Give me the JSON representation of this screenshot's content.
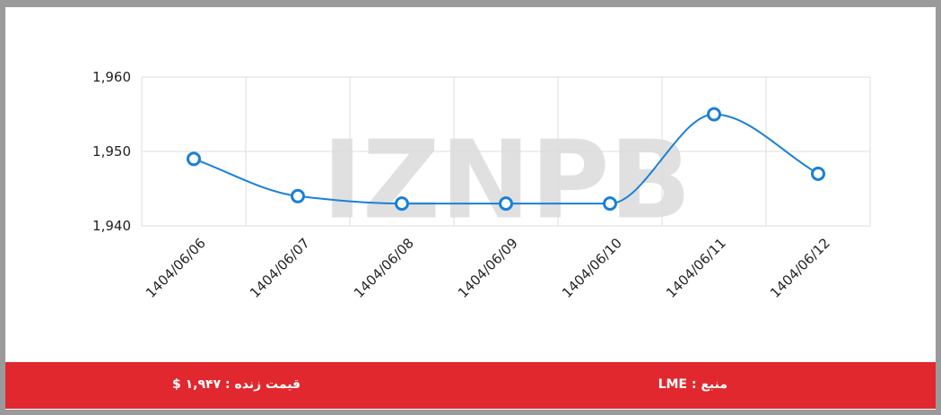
{
  "chart_data": {
    "type": "line",
    "watermark": "IZNPB",
    "categories": [
      "1404/06/06",
      "1404/06/07",
      "1404/06/08",
      "1404/06/09",
      "1404/06/10",
      "1404/06/11",
      "1404/06/12"
    ],
    "values": [
      1949,
      1944,
      1943,
      1943,
      1943,
      1955,
      1947
    ],
    "color": "#1a80d6",
    "ylim": [
      1940,
      1960
    ],
    "yticks": [
      {
        "value": 1940,
        "label": "1,940"
      },
      {
        "value": 1950,
        "label": "1,950"
      },
      {
        "value": 1960,
        "label": "1,960"
      }
    ],
    "grid": true
  },
  "footer": {
    "source": "منبع : LME",
    "price": "قیمت زنده : ۱,۹۴۷ $"
  }
}
